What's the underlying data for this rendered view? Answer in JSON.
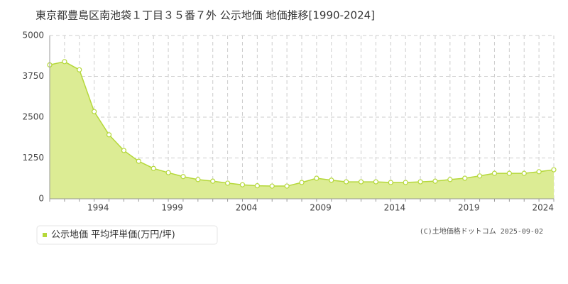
{
  "chart_data": {
    "type": "area",
    "title": "東京都豊島区南池袋１丁目３５番７外 公示地価 地価推移[1990-2024]",
    "x": [
      1990,
      1991,
      1992,
      1993,
      1994,
      1995,
      1996,
      1997,
      1998,
      1999,
      2000,
      2001,
      2002,
      2003,
      2004,
      2005,
      2006,
      2007,
      2008,
      2009,
      2010,
      2011,
      2012,
      2013,
      2014,
      2015,
      2016,
      2017,
      2018,
      2019,
      2020,
      2021,
      2022,
      2023,
      2024
    ],
    "series": [
      {
        "name": "公示地価 平均坪単価(万円/坪)",
        "color": "#b5d83a",
        "fill": "#dcec94",
        "values": [
          4100,
          4200,
          3950,
          2670,
          1960,
          1480,
          1150,
          930,
          800,
          680,
          590,
          540,
          480,
          430,
          400,
          390,
          390,
          500,
          630,
          570,
          520,
          520,
          520,
          500,
          500,
          520,
          540,
          590,
          630,
          700,
          780,
          780,
          780,
          830,
          890
        ]
      }
    ],
    "xlim": [
      1990,
      2024
    ],
    "xticks": [
      1994,
      1999,
      2004,
      2009,
      2014,
      2019,
      2024
    ],
    "ylim": [
      0,
      5000
    ],
    "yticks": [
      0,
      1250,
      2500,
      3750,
      5000
    ],
    "grid": true,
    "credit": "(C)土地価格ドットコム 2025-09-02"
  }
}
